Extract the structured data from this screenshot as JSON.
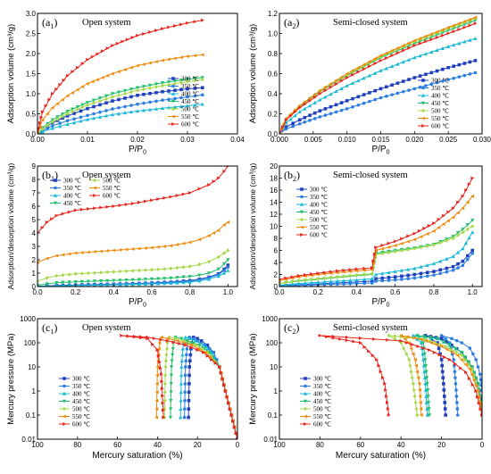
{
  "legend_temps": [
    "300 ℃",
    "350 ℃",
    "400 ℃",
    "450 ℃",
    "500 ℃",
    "550 ℃",
    "600 ℃"
  ],
  "colors": [
    "#1f3fbf",
    "#2a7de1",
    "#17b8d8",
    "#22c06a",
    "#a6d94a",
    "#f08a0c",
    "#e8241c"
  ],
  "chart_data": [
    {
      "id": "a1",
      "type": "line",
      "panel_label": "(a1)",
      "title": "Open system",
      "xlabel": "P/P0",
      "ylabel": "Adsorption volume (cm³/g)",
      "xlim": [
        0,
        0.04
      ],
      "ylim": [
        0,
        3.0
      ],
      "xticks": [
        "0.00",
        "0.01",
        "0.02",
        "0.03",
        "0.04"
      ],
      "yticks": [
        "0.0",
        "0.5",
        "1.0",
        "1.5",
        "2.0",
        "2.5",
        "3.0"
      ],
      "legend": "right",
      "x": [
        0,
        0.001,
        0.003,
        0.006,
        0.01,
        0.015,
        0.02,
        0.025,
        0.03,
        0.033
      ],
      "series": [
        {
          "name": "300 ℃",
          "values": [
            0,
            0.12,
            0.28,
            0.45,
            0.63,
            0.82,
            0.96,
            1.05,
            1.12,
            1.15
          ]
        },
        {
          "name": "350 ℃",
          "values": [
            0,
            0.08,
            0.2,
            0.33,
            0.46,
            0.62,
            0.74,
            0.84,
            0.92,
            0.97
          ]
        },
        {
          "name": "400 ℃",
          "values": [
            0,
            0.05,
            0.14,
            0.24,
            0.36,
            0.48,
            0.57,
            0.64,
            0.7,
            0.74
          ]
        },
        {
          "name": "450 ℃",
          "values": [
            0,
            0.15,
            0.35,
            0.56,
            0.78,
            1.0,
            1.15,
            1.27,
            1.36,
            1.4
          ]
        },
        {
          "name": "500 ℃",
          "values": [
            0,
            0.12,
            0.3,
            0.5,
            0.72,
            0.92,
            1.08,
            1.2,
            1.3,
            1.35
          ]
        },
        {
          "name": "550 ℃",
          "values": [
            0,
            0.35,
            0.65,
            0.95,
            1.25,
            1.5,
            1.7,
            1.83,
            1.93,
            1.97
          ]
        },
        {
          "name": "600 ℃",
          "values": [
            0,
            0.55,
            1.0,
            1.45,
            1.85,
            2.2,
            2.45,
            2.62,
            2.76,
            2.83
          ]
        }
      ]
    },
    {
      "id": "a2",
      "type": "line",
      "panel_label": "(a2)",
      "title": "Semi-closed system",
      "xlabel": "P/P0",
      "ylabel": "Adsorption volume (cm³/g)",
      "xlim": [
        0,
        0.03
      ],
      "ylim": [
        0,
        1.2
      ],
      "xticks": [
        "0.000",
        "0.005",
        "0.010",
        "0.015",
        "0.020",
        "0.025",
        "0.030"
      ],
      "yticks": [
        "0.0",
        "0.2",
        "0.4",
        "0.6",
        "0.8",
        "1.0",
        "1.2"
      ],
      "legend": "right",
      "x": [
        0,
        0.001,
        0.003,
        0.006,
        0.01,
        0.015,
        0.02,
        0.025,
        0.029
      ],
      "series": [
        {
          "name": "300 ℃",
          "values": [
            0,
            0.07,
            0.14,
            0.23,
            0.33,
            0.45,
            0.56,
            0.66,
            0.73
          ]
        },
        {
          "name": "350 ℃",
          "values": [
            0,
            0.05,
            0.1,
            0.17,
            0.25,
            0.36,
            0.45,
            0.54,
            0.61
          ]
        },
        {
          "name": "400 ℃",
          "values": [
            0,
            0.11,
            0.22,
            0.34,
            0.48,
            0.63,
            0.76,
            0.87,
            0.95
          ]
        },
        {
          "name": "450 ℃",
          "values": [
            0,
            0.14,
            0.27,
            0.42,
            0.58,
            0.76,
            0.9,
            1.03,
            1.13
          ]
        },
        {
          "name": "500 ℃",
          "values": [
            0,
            0.15,
            0.28,
            0.43,
            0.59,
            0.77,
            0.92,
            1.05,
            1.15
          ]
        },
        {
          "name": "550 ℃",
          "values": [
            0,
            0.15,
            0.28,
            0.43,
            0.6,
            0.78,
            0.93,
            1.06,
            1.16
          ]
        },
        {
          "name": "600 ℃",
          "values": [
            0,
            0.14,
            0.26,
            0.4,
            0.56,
            0.73,
            0.88,
            1.0,
            1.1
          ]
        }
      ]
    },
    {
      "id": "b1",
      "type": "line",
      "panel_label": "(b1)",
      "title": "Open system",
      "xlabel": "P/P0",
      "ylabel": "Adsorption/desorption volume (cm³/g)",
      "xlim": [
        0,
        1.05
      ],
      "ylim": [
        0,
        9
      ],
      "xticks": [
        "0.0",
        "0.2",
        "0.4",
        "0.6",
        "0.8",
        "1.0"
      ],
      "yticks": [
        "0",
        "1",
        "2",
        "3",
        "4",
        "5",
        "6",
        "7",
        "8",
        "9"
      ],
      "legend": "top-left",
      "x": [
        0,
        0.05,
        0.1,
        0.2,
        0.3,
        0.4,
        0.5,
        0.6,
        0.7,
        0.8,
        0.85,
        0.9,
        0.95,
        0.98,
        1.0
      ],
      "series": [
        {
          "name": "300 ℃",
          "values": [
            0.02,
            0.05,
            0.08,
            0.12,
            0.15,
            0.18,
            0.22,
            0.27,
            0.33,
            0.45,
            0.55,
            0.7,
            0.95,
            1.3,
            1.6
          ]
        },
        {
          "name": "350 ℃",
          "values": [
            0.02,
            0.04,
            0.06,
            0.1,
            0.13,
            0.16,
            0.2,
            0.24,
            0.3,
            0.4,
            0.5,
            0.65,
            0.9,
            1.2,
            1.45
          ]
        },
        {
          "name": "400 ℃",
          "values": [
            0.01,
            0.03,
            0.05,
            0.08,
            0.1,
            0.13,
            0.16,
            0.2,
            0.25,
            0.33,
            0.42,
            0.55,
            0.78,
            1.0,
            1.2
          ]
        },
        {
          "name": "450 ℃",
          "values": [
            0.1,
            0.2,
            0.28,
            0.35,
            0.4,
            0.45,
            0.5,
            0.56,
            0.63,
            0.75,
            0.85,
            1.0,
            1.3,
            1.7,
            2.0
          ]
        },
        {
          "name": "500 ℃",
          "values": [
            0.4,
            0.65,
            0.8,
            0.95,
            1.02,
            1.1,
            1.18,
            1.25,
            1.35,
            1.5,
            1.65,
            1.85,
            2.2,
            2.5,
            2.7
          ]
        },
        {
          "name": "550 ℃",
          "values": [
            1.8,
            2.1,
            2.3,
            2.5,
            2.6,
            2.7,
            2.8,
            2.9,
            3.05,
            3.3,
            3.5,
            3.8,
            4.2,
            4.6,
            4.8
          ]
        },
        {
          "name": "600 ℃",
          "values": [
            4.0,
            4.8,
            5.3,
            5.7,
            5.85,
            6.0,
            6.2,
            6.45,
            6.7,
            7.0,
            7.3,
            7.6,
            8.1,
            8.6,
            9.0
          ]
        }
      ]
    },
    {
      "id": "b2",
      "type": "line",
      "panel_label": "(b2)",
      "title": "Semi-closed system",
      "xlabel": "P/P0",
      "ylabel": "Adsorption/desorption volume (cm³/g)",
      "xlim": [
        0,
        1.05
      ],
      "ylim": [
        0,
        20
      ],
      "xticks": [
        "0.0",
        "0.2",
        "0.4",
        "0.6",
        "0.8",
        "1.0"
      ],
      "yticks": [
        "0",
        "2",
        "4",
        "6",
        "8",
        "10",
        "12",
        "14",
        "16",
        "18",
        "20"
      ],
      "legend": "top-left",
      "x": [
        0,
        0.1,
        0.2,
        0.3,
        0.4,
        0.48,
        0.5,
        0.6,
        0.7,
        0.8,
        0.9,
        0.95,
        1.0
      ],
      "series": [
        {
          "name": "300 ℃",
          "values": [
            0.1,
            0.3,
            0.45,
            0.6,
            0.75,
            0.9,
            1.3,
            1.6,
            2.0,
            2.5,
            3.3,
            4.2,
            6.0
          ]
        },
        {
          "name": "350 ℃",
          "values": [
            0.05,
            0.2,
            0.3,
            0.4,
            0.5,
            0.6,
            0.9,
            1.1,
            1.4,
            1.9,
            2.7,
            3.5,
            5.5
          ]
        },
        {
          "name": "400 ℃",
          "values": [
            0.2,
            0.5,
            0.7,
            0.9,
            1.1,
            1.3,
            2.0,
            2.5,
            3.0,
            3.8,
            5.0,
            6.3,
            9.0
          ]
        },
        {
          "name": "450 ℃",
          "values": [
            0.5,
            0.9,
            1.2,
            1.5,
            1.8,
            2.0,
            5.5,
            6.0,
            6.4,
            7.0,
            8.3,
            9.5,
            11.0
          ]
        },
        {
          "name": "500 ℃",
          "values": [
            0.5,
            1.0,
            1.3,
            1.6,
            1.9,
            2.1,
            5.3,
            5.8,
            6.3,
            6.9,
            8.0,
            9.0,
            10.0
          ]
        },
        {
          "name": "550 ℃",
          "values": [
            1.0,
            1.6,
            2.0,
            2.3,
            2.6,
            2.8,
            6.0,
            6.8,
            7.8,
            9.2,
            11.5,
            13.0,
            15.0
          ]
        },
        {
          "name": "600 ℃",
          "values": [
            1.2,
            1.8,
            2.2,
            2.6,
            2.9,
            3.1,
            6.5,
            7.5,
            8.8,
            10.5,
            13.0,
            15.0,
            18.0
          ]
        }
      ]
    },
    {
      "id": "c1",
      "type": "line",
      "panel_label": "(c1)",
      "title": "Open system",
      "xlabel": "Mercury saturation (%)",
      "ylabel": "Mercury pressure (MPa)",
      "xlim": [
        100,
        0
      ],
      "ylim": [
        0.01,
        1000
      ],
      "yscale": "log",
      "xticks": [
        "100",
        "80",
        "60",
        "40",
        "20",
        "0"
      ],
      "yticks": [
        "0.01",
        "0.1",
        "1",
        "10",
        "100",
        "1000"
      ],
      "legend": "bottom-left",
      "series": [
        {
          "name": "300 ℃",
          "x": [
            0,
            3,
            6,
            9,
            12,
            15,
            18,
            20,
            22,
            23,
            24,
            24.5
          ],
          "values": [
            0.01,
            0.1,
            1,
            10,
            40,
            80,
            120,
            150,
            170,
            100,
            10,
            0.08
          ]
        },
        {
          "name": "350 ℃",
          "x": [
            0,
            3,
            6,
            9,
            12,
            16,
            20,
            22,
            24,
            25,
            26,
            26.5
          ],
          "values": [
            0.01,
            0.1,
            1,
            10,
            40,
            80,
            120,
            150,
            170,
            100,
            10,
            0.08
          ]
        },
        {
          "name": "400 ℃",
          "x": [
            0,
            3,
            6,
            9,
            13,
            17,
            21,
            24,
            26,
            27,
            28,
            28.5
          ],
          "values": [
            0.01,
            0.1,
            1,
            10,
            40,
            80,
            120,
            150,
            170,
            100,
            10,
            0.08
          ]
        },
        {
          "name": "450 ℃",
          "x": [
            0,
            3,
            6,
            9,
            14,
            19,
            25,
            28,
            31,
            32,
            33,
            33.5
          ],
          "values": [
            0.01,
            0.1,
            1,
            10,
            40,
            80,
            120,
            150,
            170,
            100,
            10,
            0.08
          ]
        },
        {
          "name": "500 ℃",
          "x": [
            0,
            3,
            6,
            9,
            15,
            21,
            27,
            31,
            34,
            35,
            36,
            36.5
          ],
          "values": [
            0.01,
            0.1,
            1,
            10,
            40,
            80,
            120,
            150,
            170,
            100,
            10,
            0.08
          ]
        },
        {
          "name": "550 ℃",
          "x": [
            0,
            3,
            6,
            9,
            16,
            23,
            30,
            35,
            38,
            39,
            40,
            40.5
          ],
          "values": [
            0.01,
            0.1,
            1,
            10,
            40,
            80,
            120,
            150,
            170,
            100,
            10,
            0.08
          ]
        },
        {
          "name": "600 ℃",
          "x": [
            0,
            3,
            6,
            9,
            17,
            26,
            35,
            45,
            58,
            45,
            40,
            38,
            37
          ],
          "values": [
            0.01,
            0.1,
            1,
            10,
            40,
            80,
            120,
            170,
            200,
            150,
            50,
            5,
            0.08
          ]
        }
      ]
    },
    {
      "id": "c2",
      "type": "line",
      "panel_label": "(c2)",
      "title": "Semi-closed system",
      "xlabel": "Mercury saturation (%)",
      "ylabel": "Mercury pressure (MPa)",
      "xlim": [
        100,
        0
      ],
      "ylim": [
        0.01,
        1000
      ],
      "yscale": "log",
      "xticks": [
        "100",
        "80",
        "60",
        "40",
        "20",
        "0"
      ],
      "yticks": [
        "0.01",
        "0.1",
        "1",
        "10",
        "100",
        "1000"
      ],
      "legend": "bottom-left",
      "series": [
        {
          "name": "300 ℃",
          "x": [
            0,
            2,
            5,
            10,
            15,
            20,
            28,
            22,
            20,
            19,
            18
          ],
          "values": [
            0.3,
            2,
            10,
            40,
            80,
            150,
            200,
            100,
            20,
            2,
            0.1
          ]
        },
        {
          "name": "350 ℃",
          "x": [
            0,
            1,
            3,
            6,
            10,
            15,
            20,
            16,
            14,
            13,
            12
          ],
          "values": [
            1,
            5,
            20,
            60,
            100,
            150,
            200,
            100,
            20,
            2,
            0.1
          ]
        },
        {
          "name": "400 ℃",
          "x": [
            0,
            2,
            5,
            10,
            16,
            22,
            34,
            30,
            29,
            28,
            27
          ],
          "values": [
            0.2,
            2,
            10,
            40,
            80,
            150,
            200,
            100,
            20,
            2,
            0.1
          ]
        },
        {
          "name": "450 ℃",
          "x": [
            0,
            2,
            5,
            10,
            16,
            22,
            32,
            29,
            28,
            27,
            26
          ],
          "values": [
            0.2,
            2,
            10,
            40,
            80,
            150,
            200,
            100,
            20,
            2,
            0.1
          ]
        },
        {
          "name": "500 ℃",
          "x": [
            0,
            2,
            5,
            10,
            18,
            28,
            46,
            40,
            36,
            34,
            32
          ],
          "values": [
            0.1,
            1,
            8,
            30,
            70,
            140,
            200,
            100,
            20,
            2,
            0.1
          ]
        },
        {
          "name": "550 ℃",
          "x": [
            0,
            2,
            6,
            12,
            20,
            30,
            40,
            36,
            33,
            31,
            30
          ],
          "values": [
            0.1,
            1,
            8,
            30,
            70,
            140,
            200,
            100,
            20,
            2,
            0.1
          ]
        },
        {
          "name": "600 ℃",
          "x": [
            0,
            3,
            8,
            16,
            26,
            40,
            80,
            60,
            52,
            48,
            46
          ],
          "values": [
            0.1,
            1,
            6,
            20,
            50,
            120,
            200,
            100,
            20,
            2,
            0.1
          ]
        }
      ]
    }
  ]
}
